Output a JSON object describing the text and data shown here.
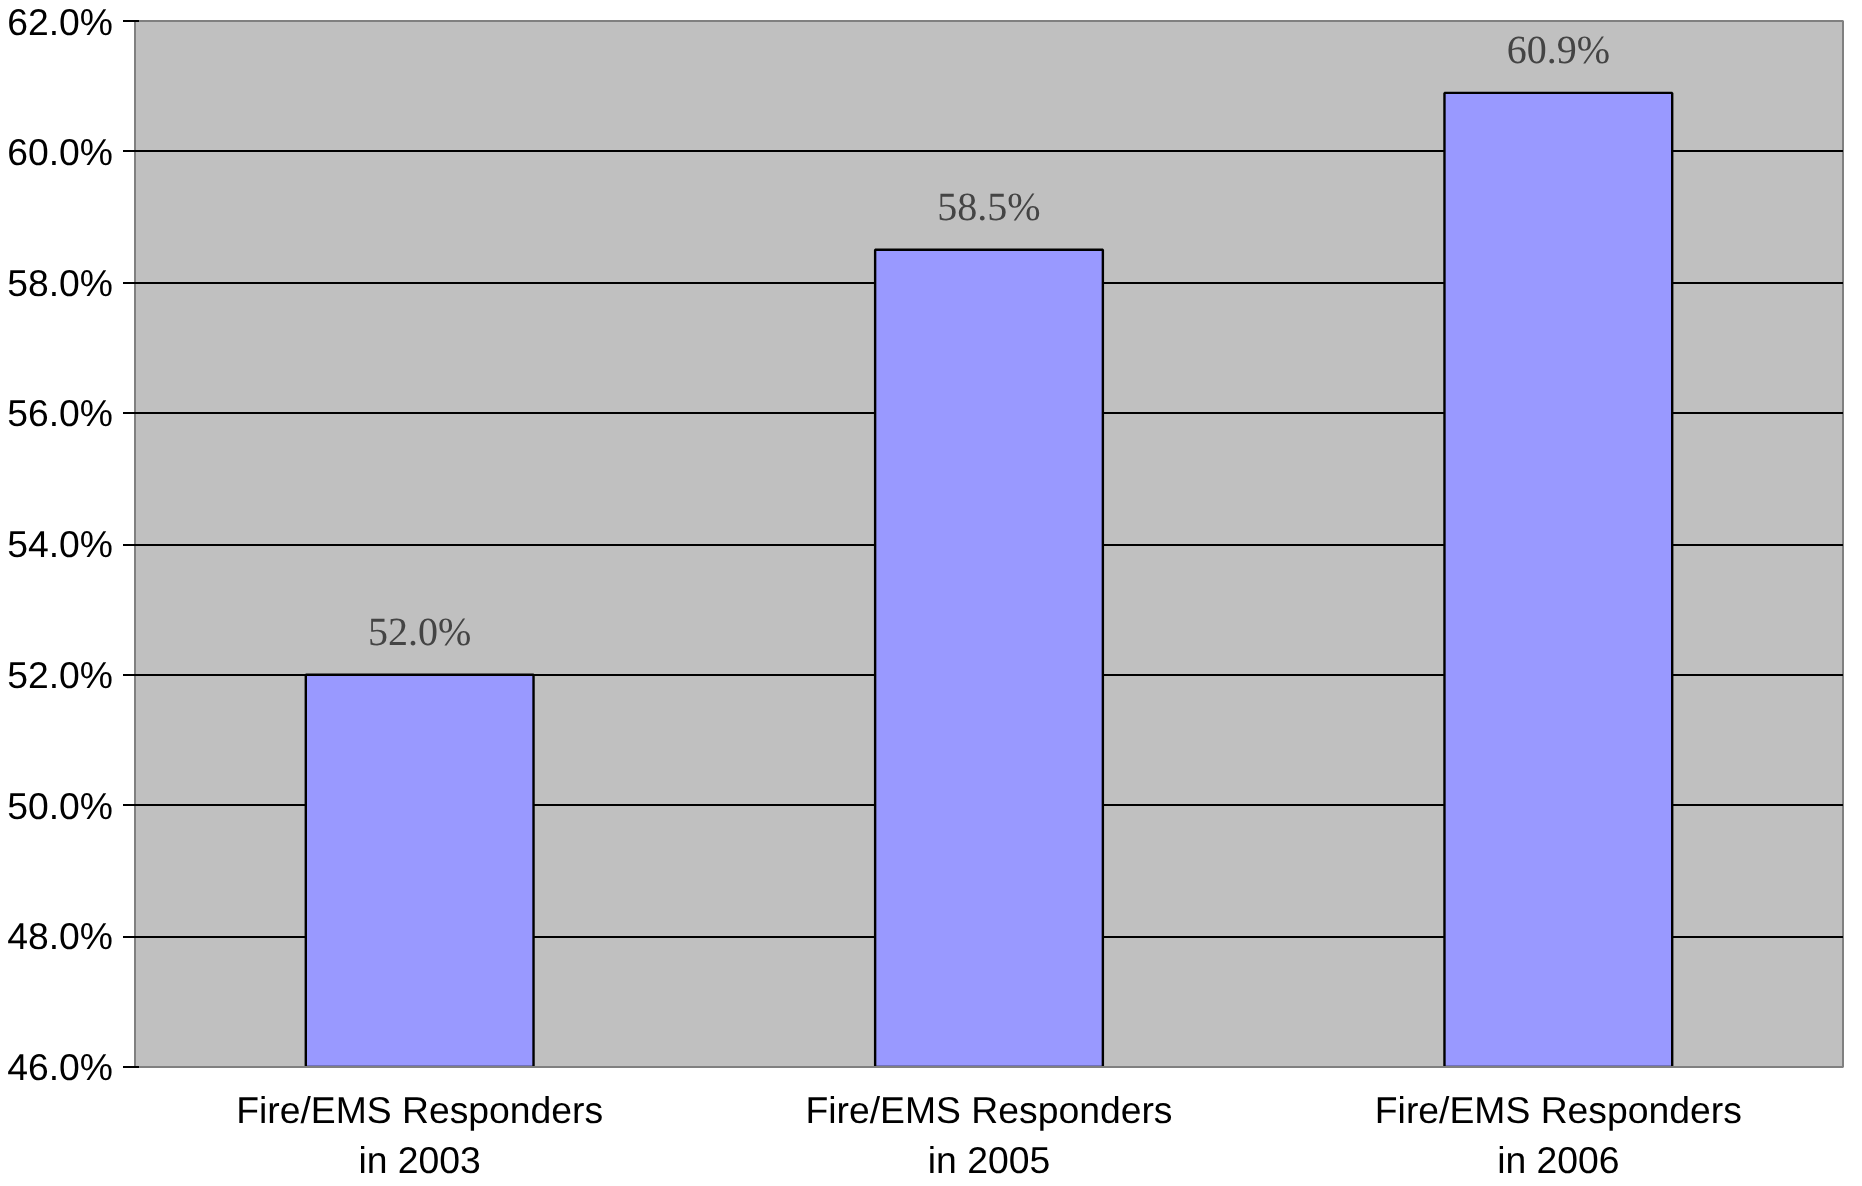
{
  "chart_data": {
    "type": "bar",
    "categories": [
      "Fire/EMS Responders\nin 2003",
      "Fire/EMS Responders\nin 2005",
      "Fire/EMS Responders\nin 2006"
    ],
    "values": [
      52.0,
      58.5,
      60.9
    ],
    "value_labels": [
      "52.0%",
      "58.5%",
      "60.9%"
    ],
    "color": "#9999ff",
    "ylim": [
      46,
      62
    ],
    "yticks": [
      {
        "value": 46,
        "label": "46.0%"
      },
      {
        "value": 48,
        "label": "48.0%"
      },
      {
        "value": 50,
        "label": "50.0%"
      },
      {
        "value": 52,
        "label": "52.0%"
      },
      {
        "value": 54,
        "label": "54.0%"
      },
      {
        "value": 56,
        "label": "56.0%"
      },
      {
        "value": 58,
        "label": "58.0%"
      },
      {
        "value": 60,
        "label": "60.0%"
      },
      {
        "value": 62,
        "label": "62.0%"
      }
    ],
    "grid": "y"
  }
}
